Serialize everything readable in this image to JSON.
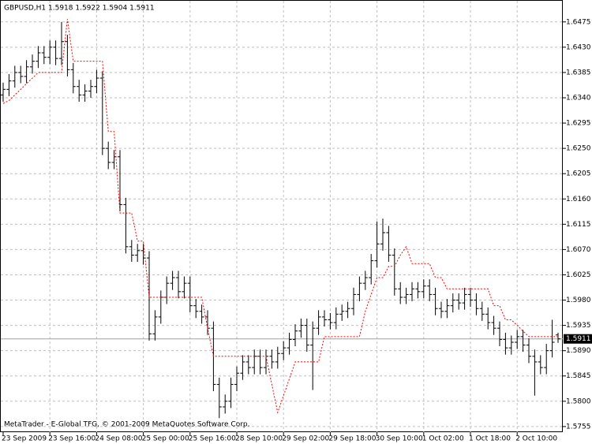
{
  "chart_data": {
    "type": "ohlc",
    "title": "GBPUSD,H1  1.5918 1.5922 1.5904 1.5911",
    "footer": "MetaTrader - E-Global TFG, © 2001-2009 MetaQuotes Software Corp.",
    "grid": true,
    "color": "#000000",
    "ylim": [
      1.5745,
      1.6514
    ],
    "yticks": [
      1.6475,
      {
        "value": 1.643,
        "label": "1.6430"
      },
      1.6385,
      {
        "value": 1.634,
        "label": "1.6340"
      },
      1.6295,
      {
        "value": 1.625,
        "label": "1.6250"
      },
      1.6205,
      {
        "value": 1.616,
        "label": "1.6160"
      },
      1.6115,
      {
        "value": 1.607,
        "label": "1.6070"
      },
      1.6025,
      {
        "value": 1.598,
        "label": "1.5980"
      },
      1.5935,
      {
        "value": 1.589,
        "label": "1.5890"
      },
      1.5845,
      {
        "value": 1.58,
        "label": "1.5800"
      },
      1.5755
    ],
    "categories": [
      "23 Sep 2009",
      null,
      null,
      null,
      null,
      null,
      null,
      null,
      "23 Sep 16:00",
      null,
      null,
      null,
      null,
      null,
      null,
      null,
      "24 Sep 08:00",
      null,
      null,
      null,
      null,
      null,
      null,
      null,
      "25 Sep 00:00",
      null,
      null,
      null,
      null,
      null,
      null,
      null,
      "25 Sep 16:00",
      null,
      null,
      null,
      null,
      null,
      null,
      null,
      "28 Sep 10:00",
      null,
      null,
      null,
      null,
      null,
      null,
      null,
      "29 Sep 02:00",
      null,
      null,
      null,
      null,
      null,
      null,
      null,
      "29 Sep 18:00",
      null,
      null,
      null,
      null,
      null,
      null,
      null,
      "30 Sep 10:00",
      null,
      null,
      null,
      null,
      null,
      null,
      null,
      "1 Oct 02:00",
      null,
      null,
      null,
      null,
      null,
      null,
      null,
      "1 Oct 18:00",
      null,
      null,
      null,
      null,
      null,
      null,
      null,
      "2 Oct 10:00",
      null,
      null,
      null,
      null,
      null,
      null,
      null
    ],
    "open": [
      1.6345,
      1.6355,
      1.637,
      1.6385,
      1.6378,
      1.6395,
      1.6405,
      1.642,
      1.6412,
      1.643,
      1.641,
      1.644,
      1.639,
      1.636,
      1.6345,
      1.6352,
      1.636,
      1.6375,
      1.625,
      1.6225,
      1.6235,
      1.615,
      1.6075,
      1.606,
      1.6068,
      1.6055,
      1.592,
      1.595,
      1.5985,
      1.601,
      1.602,
      1.5995,
      1.601,
      1.597,
      1.596,
      1.595,
      1.593,
      1.583,
      1.579,
      1.58,
      1.583,
      1.585,
      1.587,
      1.586,
      1.588,
      1.586,
      1.588,
      1.587,
      1.5885,
      1.5895,
      1.591,
      1.5925,
      1.5935,
      1.59,
      1.593,
      1.595,
      1.5945,
      1.594,
      1.5955,
      1.596,
      1.5965,
      1.599,
      1.601,
      1.602,
      1.605,
      1.608,
      1.61,
      1.606,
      1.6,
      1.5985,
      1.599,
      1.6,
      1.5995,
      1.6005,
      1.599,
      1.5965,
      1.596,
      1.597,
      1.598,
      1.5975,
      1.599,
      1.598,
      1.5965,
      1.5955,
      1.594,
      1.593,
      1.591,
      1.5895,
      1.5905,
      1.5915,
      1.59,
      1.588,
      1.587,
      1.586,
      1.589,
      1.5918
    ],
    "high": [
      1.6367,
      1.6382,
      1.6397,
      1.6397,
      1.6407,
      1.6417,
      1.6432,
      1.6432,
      1.6442,
      1.6442,
      1.6475,
      1.6452,
      1.6402,
      1.6372,
      1.6364,
      1.6372,
      1.639,
      1.6387,
      1.6262,
      1.6247,
      1.6247,
      1.6162,
      1.6087,
      1.608,
      1.608,
      1.6067,
      1.5962,
      1.5997,
      1.6022,
      1.6032,
      1.6032,
      1.6022,
      1.6022,
      1.5982,
      1.5972,
      1.5962,
      1.5942,
      1.5842,
      1.5812,
      1.5842,
      1.5862,
      1.5882,
      1.5882,
      1.5892,
      1.5892,
      1.5892,
      1.5892,
      1.5897,
      1.5907,
      1.5922,
      1.5937,
      1.5947,
      1.5947,
      1.5942,
      1.5962,
      1.5962,
      1.5957,
      1.5967,
      1.5972,
      1.5977,
      1.6002,
      1.6022,
      1.6032,
      1.6062,
      1.612,
      1.6125,
      1.6112,
      1.6072,
      1.6012,
      1.6002,
      1.6012,
      1.6012,
      1.6017,
      1.6017,
      1.6002,
      1.5977,
      1.5982,
      1.5992,
      1.5992,
      1.6002,
      1.6002,
      1.5992,
      1.5977,
      1.5967,
      1.5952,
      1.5942,
      1.5922,
      1.5917,
      1.5927,
      1.5927,
      1.5912,
      1.5892,
      1.5882,
      1.5902,
      1.5945,
      1.5922
    ],
    "low": [
      1.6333,
      1.6343,
      1.6358,
      1.6366,
      1.6366,
      1.6383,
      1.6393,
      1.64,
      1.64,
      1.6398,
      1.6398,
      1.6378,
      1.6348,
      1.6333,
      1.6333,
      1.634,
      1.6348,
      1.6238,
      1.6213,
      1.6213,
      1.6138,
      1.6063,
      1.6048,
      1.6048,
      1.6043,
      1.5908,
      1.5908,
      1.5938,
      1.5973,
      1.5998,
      1.5983,
      1.5983,
      1.5958,
      1.5948,
      1.5938,
      1.5918,
      1.5818,
      1.577,
      1.5778,
      1.5788,
      1.5818,
      1.5838,
      1.5848,
      1.5848,
      1.5848,
      1.5848,
      1.5858,
      1.5858,
      1.5873,
      1.5883,
      1.5898,
      1.5913,
      1.5888,
      1.582,
      1.5918,
      1.5933,
      1.5928,
      1.5928,
      1.5943,
      1.5948,
      1.5953,
      1.5978,
      1.5998,
      1.6008,
      1.6038,
      1.6068,
      1.6048,
      1.5988,
      1.5973,
      1.5973,
      1.5978,
      1.5983,
      1.5983,
      1.5978,
      1.5953,
      1.5948,
      1.5948,
      1.5958,
      1.5963,
      1.5963,
      1.5968,
      1.5953,
      1.5943,
      1.5928,
      1.5918,
      1.5898,
      1.5883,
      1.5883,
      1.5893,
      1.5888,
      1.5868,
      1.581,
      1.5848,
      1.5848,
      1.5878,
      1.5904
    ],
    "close": [
      1.6355,
      1.637,
      1.6385,
      1.6378,
      1.6395,
      1.6405,
      1.642,
      1.6412,
      1.643,
      1.641,
      1.644,
      1.639,
      1.636,
      1.6345,
      1.6352,
      1.636,
      1.6375,
      1.625,
      1.6225,
      1.6235,
      1.615,
      1.6075,
      1.606,
      1.6068,
      1.6055,
      1.592,
      1.595,
      1.5985,
      1.601,
      1.602,
      1.5995,
      1.601,
      1.597,
      1.596,
      1.595,
      1.593,
      1.583,
      1.579,
      1.58,
      1.583,
      1.585,
      1.587,
      1.586,
      1.588,
      1.586,
      1.588,
      1.587,
      1.5885,
      1.5895,
      1.591,
      1.5925,
      1.5935,
      1.59,
      1.593,
      1.595,
      1.5945,
      1.594,
      1.5955,
      1.596,
      1.5965,
      1.599,
      1.601,
      1.602,
      1.605,
      1.608,
      1.61,
      1.606,
      1.6,
      1.5985,
      1.599,
      1.6,
      1.5995,
      1.6005,
      1.599,
      1.5965,
      1.596,
      1.597,
      1.598,
      1.5975,
      1.599,
      1.598,
      1.5965,
      1.5955,
      1.594,
      1.593,
      1.591,
      1.5895,
      1.5905,
      1.5915,
      1.59,
      1.588,
      1.587,
      1.586,
      1.589,
      1.5905,
      1.5911
    ],
    "indicator": {
      "color": "#ff0000",
      "values": [
        1.633,
        1.6335,
        1.6345,
        1.6355,
        1.6365,
        1.6375,
        1.6385,
        1.6385,
        1.6385,
        1.6385,
        1.6385,
        1.648,
        1.6405,
        1.6405,
        1.6405,
        1.6405,
        1.6405,
        1.6405,
        1.628,
        1.628,
        1.6135,
        1.6135,
        1.6135,
        1.6085,
        1.6085,
        1.5985,
        1.5985,
        1.5985,
        1.5985,
        1.5985,
        1.5985,
        1.5985,
        1.5985,
        1.5985,
        1.5985,
        1.593,
        1.588,
        1.588,
        1.588,
        1.588,
        1.588,
        1.588,
        1.588,
        1.588,
        1.588,
        1.588,
        1.583,
        1.578,
        1.581,
        1.584,
        1.587,
        1.587,
        1.587,
        1.587,
        1.587,
        1.5915,
        1.5915,
        1.5915,
        1.5915,
        1.5915,
        1.5915,
        1.5915,
        1.596,
        1.599,
        1.602,
        1.602,
        1.604,
        1.604,
        1.606,
        1.6075,
        1.6045,
        1.6045,
        1.6045,
        1.6045,
        1.602,
        1.602,
        1.6,
        1.6,
        1.6,
        1.6,
        1.6,
        1.6,
        1.6,
        1.6,
        1.597,
        1.597,
        1.5945,
        1.5945,
        1.5935,
        1.5925,
        1.5915,
        1.5915,
        1.5915,
        1.5915,
        1.5915,
        1.5915
      ]
    }
  }
}
